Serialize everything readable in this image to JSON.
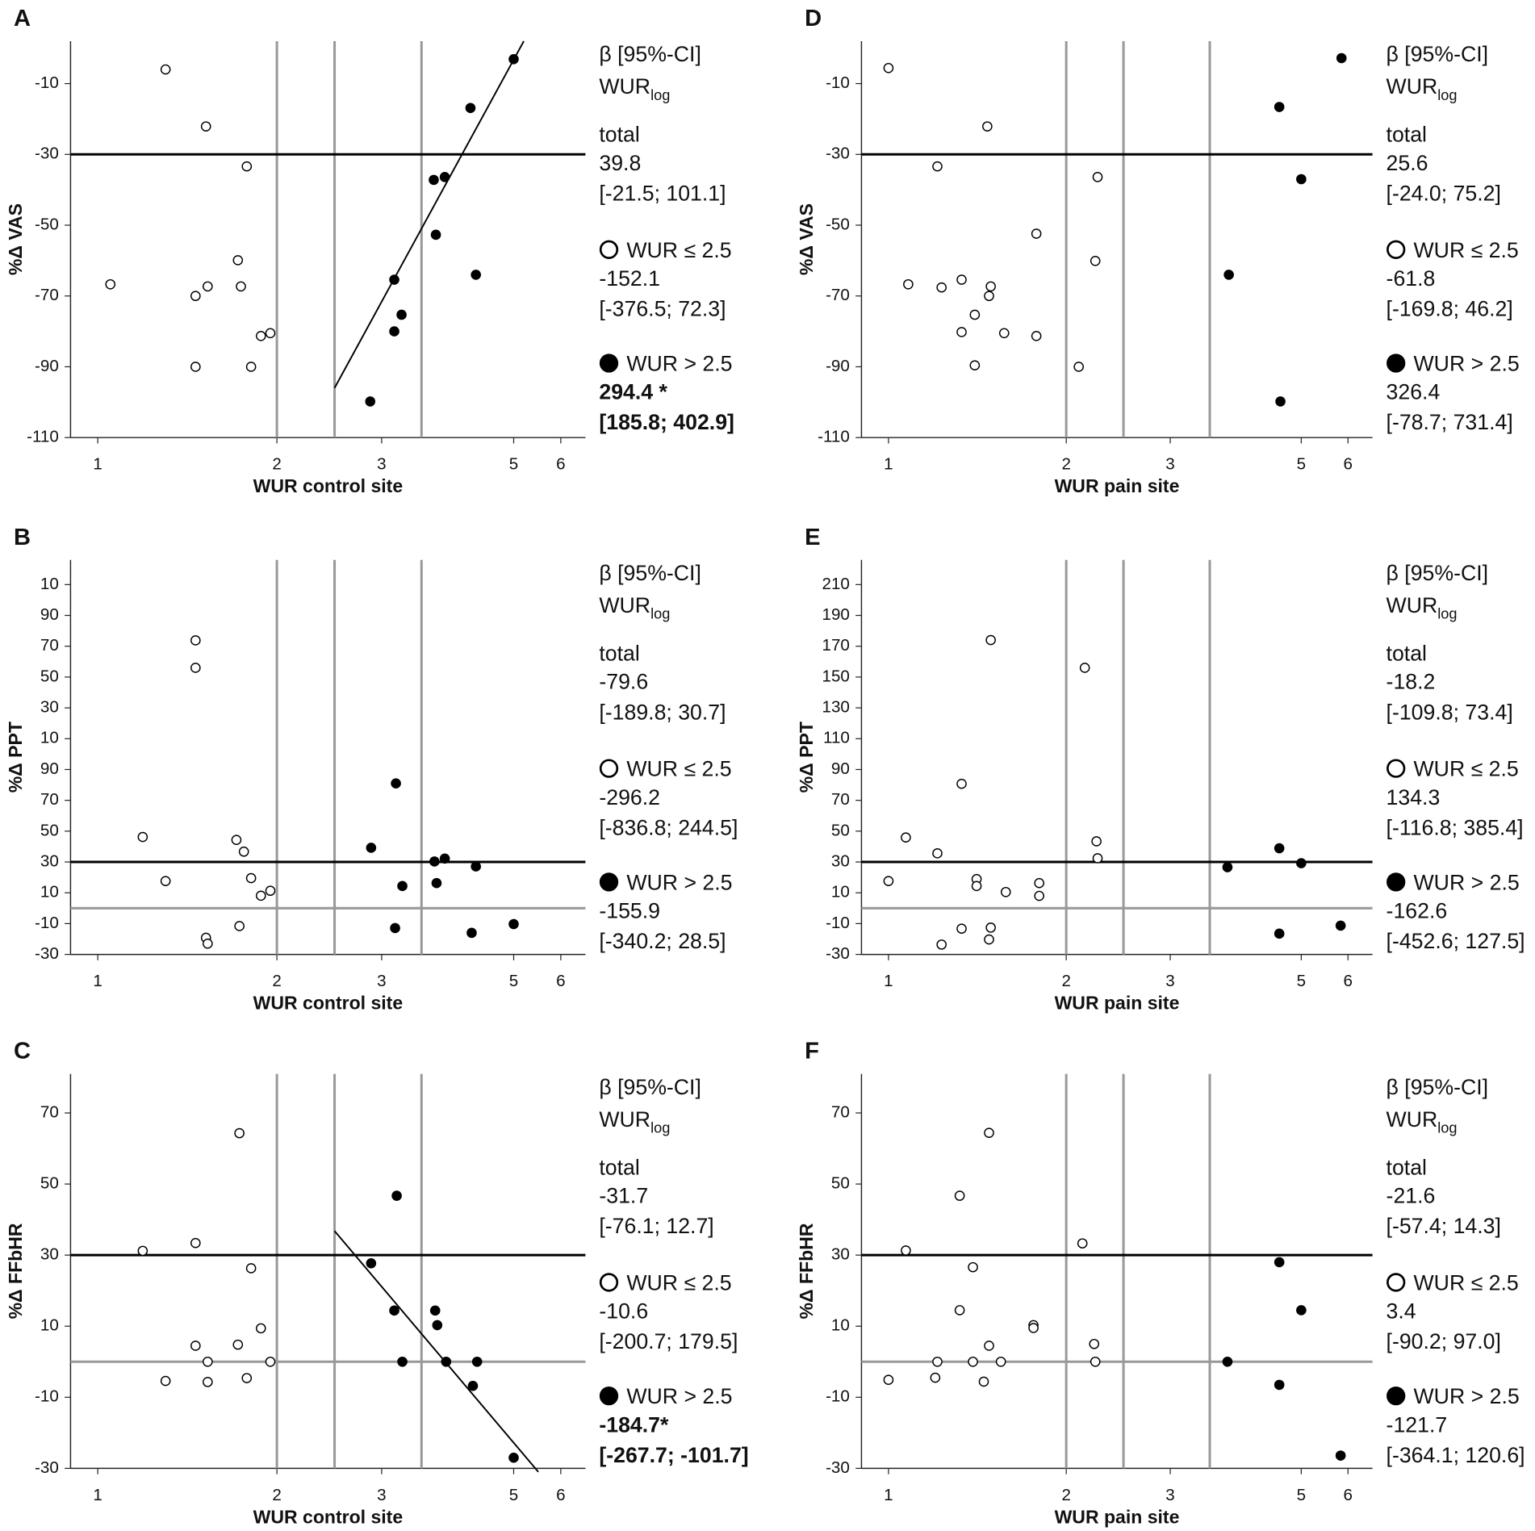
{
  "chart_data": [
    {
      "type": "scatter",
      "panel": "A",
      "xlabel": "WUR control site",
      "ylabel": "%Δ VAS",
      "xscale": "log",
      "xlim": [
        0.9,
        6.6
      ],
      "xticks": [
        1,
        2,
        3,
        5,
        6
      ],
      "ylim": [
        -110,
        2
      ],
      "yticks": [
        -10,
        -30,
        -50,
        -70,
        -90,
        -110
      ],
      "vlines": [
        2,
        2.5,
        3.5
      ],
      "hlines": [
        {
          "y": -30,
          "color": "#000000"
        }
      ],
      "fit": {
        "x": [
          2.5,
          5.2
        ],
        "y": [
          -96,
          2
        ]
      },
      "stats_header": "β [95%-CI]",
      "stats_subject": "WUR",
      "stats_subscript": "log",
      "total": {
        "label": "total",
        "beta": "39.8",
        "ci": "[-21.5; 101.1]"
      },
      "series": [
        {
          "name": "WUR ≤ 2.5",
          "marker": "open",
          "color": "#000000",
          "beta": "-152.1",
          "ci": "[-376.5; 72.3]",
          "x": [
            1.3,
            1.52,
            1.78,
            1.72,
            1.05,
            1.53,
            1.46,
            1.74,
            1.95,
            1.88,
            1.46,
            1.81
          ],
          "values": [
            -6,
            -22.1,
            -33.4,
            -59.9,
            -66.7,
            -67.3,
            -70,
            -67.3,
            -80.5,
            -81.3,
            -90,
            -90
          ]
        },
        {
          "name": "WUR > 2.5",
          "marker": "filled",
          "color": "#000000",
          "beta": "294.4 *",
          "ci": "[185.8; 402.9]",
          "bold": true,
          "x": [
            5,
            4.23,
            3.67,
            3.83,
            3.7,
            4.32,
            3.15,
            3.24,
            3.15,
            2.87
          ],
          "values": [
            -3.1,
            -16.9,
            -37.2,
            -36.4,
            -52.7,
            -64,
            -65.4,
            -75.3,
            -80,
            -99.8
          ]
        }
      ]
    },
    {
      "type": "scatter",
      "panel": "B",
      "xlabel": "WUR control site",
      "ylabel": "%Δ PPT",
      "xscale": "log",
      "xlim": [
        0.9,
        6.6
      ],
      "xticks": [
        1,
        2,
        3,
        5,
        6
      ],
      "ylim": [
        -30,
        226
      ],
      "yticks": [
        {
          "value": 210,
          "label": "10"
        },
        {
          "value": 190,
          "label": "90"
        },
        {
          "value": 170,
          "label": "70"
        },
        {
          "value": 150,
          "label": "50"
        },
        {
          "value": 130,
          "label": "30"
        },
        {
          "value": 110,
          "label": "10"
        },
        90,
        70,
        50,
        30,
        10,
        -10,
        -30
      ],
      "vlines": [
        2,
        2.5,
        3.5
      ],
      "hlines": [
        {
          "y": 30,
          "color": "#000000"
        },
        {
          "y": 0,
          "color": "#999999"
        }
      ],
      "stats_header": "β [95%-CI]",
      "stats_subject": "WUR",
      "stats_subscript": "log",
      "total": {
        "label": "total",
        "beta": "-79.6",
        "ci": "[-189.8; 30.7]"
      },
      "series": [
        {
          "name": "WUR ≤ 2.5",
          "marker": "open",
          "color": "#000000",
          "beta": "-296.2",
          "ci": "[-836.8; 244.5]",
          "x": [
            1.46,
            1.46,
            1.19,
            1.3,
            1.71,
            1.76,
            1.81,
            1.88,
            1.95,
            1.73,
            1.52,
            1.53
          ],
          "values": [
            173.8,
            156,
            46.2,
            17.6,
            44.3,
            36.7,
            19.5,
            8.1,
            11.3,
            -11.6,
            -19.2,
            -23
          ]
        },
        {
          "name": "WUR > 2.5",
          "marker": "filled",
          "color": "#000000",
          "beta": "-155.9",
          "ci": "[-340.2; 28.5]",
          "x": [
            3.17,
            2.88,
            3.25,
            3.16,
            3.68,
            3.83,
            3.71,
            4.32,
            4.25,
            5
          ],
          "values": [
            81,
            39.2,
            14.4,
            -12.9,
            30.3,
            32.2,
            16.3,
            27.1,
            -16,
            -10.3
          ]
        }
      ]
    },
    {
      "type": "scatter",
      "panel": "C",
      "xlabel": "WUR control site",
      "ylabel": "%Δ FFbHR",
      "xscale": "log",
      "xlim": [
        0.9,
        6.6
      ],
      "xticks": [
        1,
        2,
        3,
        5,
        6
      ],
      "ylim": [
        -30,
        81
      ],
      "yticks": [
        70,
        50,
        30,
        10,
        -10,
        -30
      ],
      "vlines": [
        2,
        2.5,
        3.5
      ],
      "hlines": [
        {
          "y": 30,
          "color": "#000000"
        },
        {
          "y": 0,
          "color": "#999999"
        }
      ],
      "fit": {
        "x": [
          2.5,
          5.5
        ],
        "y": [
          36.8,
          -31
        ]
      },
      "stats_header": "β [95%-CI]",
      "stats_subject": "WUR",
      "stats_subscript": "log",
      "total": {
        "label": "total",
        "beta": "-31.7",
        "ci": "[-76.1; 12.7]"
      },
      "series": [
        {
          "name": "WUR ≤ 2.5",
          "marker": "open",
          "color": "#000000",
          "beta": "-10.6",
          "ci": "[-200.7; 179.5]",
          "x": [
            1.19,
            1.46,
            1.73,
            1.81,
            1.88,
            1.72,
            1.46,
            1.53,
            1.95,
            1.3,
            1.53,
            1.78
          ],
          "values": [
            31.2,
            33.4,
            64.3,
            26.3,
            9.4,
            4.8,
            4.5,
            0,
            0,
            -5.4,
            -5.7,
            -4.6
          ]
        },
        {
          "name": "WUR > 2.5",
          "marker": "filled",
          "color": "#000000",
          "beta": "-184.7*",
          "ci": "[-267.7; -101.7]",
          "bold": true,
          "x": [
            3.18,
            2.88,
            3.15,
            3.69,
            3.72,
            3.25,
            3.85,
            4.34,
            4.27,
            5
          ],
          "values": [
            46.7,
            27.7,
            14.4,
            14.4,
            10.3,
            0,
            0,
            0,
            -6.8,
            -27
          ]
        }
      ]
    },
    {
      "type": "scatter",
      "panel": "D",
      "xlabel": "WUR pain site",
      "ylabel": "%Δ VAS",
      "xscale": "log",
      "xlim": [
        0.9,
        6.6
      ],
      "xticks": [
        1,
        2,
        3,
        5,
        6
      ],
      "ylim": [
        -110,
        2
      ],
      "yticks": [
        -10,
        -30,
        -50,
        -70,
        -90,
        -110
      ],
      "vlines": [
        2,
        2.5,
        3.5
      ],
      "hlines": [
        {
          "y": -30,
          "color": "#000000"
        }
      ],
      "stats_header": "β [95%-CI]",
      "stats_subject": "WUR",
      "stats_subscript": "log",
      "total": {
        "label": "total",
        "beta": "25.6",
        "ci": "[-24.0; 75.2]"
      },
      "series": [
        {
          "name": "WUR ≤ 2.5",
          "marker": "open",
          "color": "#000000",
          "beta": "-61.8",
          "ci": "[-169.8; 46.2]",
          "x": [
            1,
            1.47,
            1.21,
            2.26,
            1.78,
            2.24,
            1.08,
            1.23,
            1.33,
            1.49,
            1.48,
            1.4,
            1.33,
            1.57,
            1.78,
            1.4,
            2.1
          ],
          "values": [
            -5.6,
            -22.1,
            -33.4,
            -36.4,
            -52.4,
            -60.1,
            -66.7,
            -67.6,
            -65.4,
            -67.3,
            -70,
            -75.3,
            -80.2,
            -80.5,
            -81.3,
            -89.6,
            -90
          ]
        },
        {
          "name": "WUR > 2.5",
          "marker": "filled",
          "color": "#000000",
          "beta": "326.4",
          "ci": "[-78.7; 731.4]",
          "x": [
            5.85,
            4.59,
            5,
            3.77,
            4.61
          ],
          "values": [
            -2.8,
            -16.6,
            -37,
            -64,
            -99.8
          ]
        }
      ]
    },
    {
      "type": "scatter",
      "panel": "E",
      "xlabel": "WUR pain site",
      "ylabel": "%Δ PPT",
      "xscale": "log",
      "xlim": [
        0.9,
        6.6
      ],
      "xticks": [
        1,
        2,
        3,
        5,
        6
      ],
      "ylim": [
        -30,
        226
      ],
      "yticks": [
        210,
        190,
        170,
        150,
        130,
        110,
        90,
        70,
        50,
        30,
        10,
        -10,
        -30
      ],
      "vlines": [
        2,
        2.5,
        3.5
      ],
      "hlines": [
        {
          "y": 30,
          "color": "#000000"
        },
        {
          "y": 0,
          "color": "#999999"
        }
      ],
      "stats_header": "β [95%-CI]",
      "stats_subject": "WUR",
      "stats_subscript": "log",
      "total": {
        "label": "total",
        "beta": "-18.2",
        "ci": "[-109.8; 73.4]"
      },
      "series": [
        {
          "name": "WUR ≤ 2.5",
          "marker": "open",
          "color": "#000000",
          "beta": "134.3",
          "ci": "[-116.8; 385.4]",
          "x": [
            1.49,
            2.15,
            1.33,
            1.07,
            1.21,
            2.25,
            2.26,
            1,
            1.41,
            1.41,
            1.58,
            1.8,
            1.8,
            1.33,
            1.49,
            1.48,
            1.23
          ],
          "values": [
            174,
            156,
            80.7,
            45.9,
            35.6,
            43.4,
            32.4,
            17.6,
            18.9,
            14.4,
            10.5,
            16.3,
            8,
            -13.3,
            -12.6,
            -20.3,
            -23.6
          ]
        },
        {
          "name": "WUR > 2.5",
          "marker": "filled",
          "color": "#000000",
          "beta": "-162.6",
          "ci": "[-452.6; 127.5]",
          "x": [
            3.75,
            4.59,
            5,
            4.59,
            5.83
          ],
          "values": [
            26.6,
            38.9,
            29.2,
            -16.5,
            -11.3
          ]
        }
      ]
    },
    {
      "type": "scatter",
      "panel": "F",
      "xlabel": "WUR pain site",
      "ylabel": "%Δ FFbHR",
      "xscale": "log",
      "xlim": [
        0.9,
        6.6
      ],
      "xticks": [
        1,
        2,
        3,
        5,
        6
      ],
      "ylim": [
        -30,
        81
      ],
      "yticks": [
        70,
        50,
        30,
        10,
        -10,
        -30
      ],
      "vlines": [
        2,
        2.5,
        3.5
      ],
      "hlines": [
        {
          "y": 30,
          "color": "#000000"
        },
        {
          "y": 0,
          "color": "#999999"
        }
      ],
      "stats_header": "β [95%-CI]",
      "stats_subject": "WUR",
      "stats_subscript": "log",
      "total": {
        "label": "total",
        "beta": "-21.6",
        "ci": "[-57.4; 14.3]"
      },
      "series": [
        {
          "name": "WUR ≤ 2.5",
          "marker": "open",
          "color": "#000000",
          "beta": "3.4",
          "ci": "[-90.2; 97.0]",
          "x": [
            1.48,
            1.32,
            1.07,
            2.13,
            1.39,
            1.32,
            1.76,
            1.76,
            1.48,
            2.23,
            1.21,
            1.39,
            1.55,
            2.24,
            1,
            1.2,
            1.45
          ],
          "values": [
            64.4,
            46.7,
            31.3,
            33.3,
            26.6,
            14.5,
            10.3,
            9.5,
            4.5,
            5,
            0,
            0,
            0,
            0,
            -5.1,
            -4.5,
            -5.6
          ]
        },
        {
          "name": "WUR > 2.5",
          "marker": "filled",
          "color": "#000000",
          "beta": "-121.7",
          "ci": "[-364.1; 120.6]",
          "x": [
            4.59,
            5,
            3.75,
            4.59,
            5.83
          ],
          "values": [
            28,
            14.5,
            0,
            -6.5,
            -26.4
          ]
        }
      ]
    }
  ]
}
